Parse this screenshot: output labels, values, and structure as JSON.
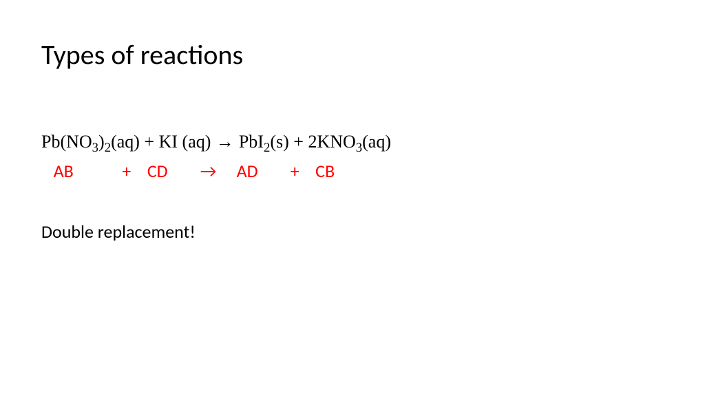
{
  "slide": {
    "title": "Types of reactions",
    "title_fontsize": 40,
    "title_color": "#000000",
    "background_color": "#ffffff",
    "equation": {
      "font_family": "Times New Roman",
      "fontsize": 26,
      "color": "#000000",
      "reactant1": {
        "formula": "Pb(NO",
        "sub1": "3",
        "mid": ")",
        "sub2": "2",
        "state": "(aq)"
      },
      "plus1": " + ",
      "reactant2": {
        "formula": "KI",
        "state": " (aq)"
      },
      "arrow": "  →   ",
      "product1": {
        "formula": "PbI",
        "sub1": "2",
        "state": "(s)"
      },
      "plus2": "   + ",
      "product2": {
        "coeff": "2",
        "formula": "KNO",
        "sub1": "3",
        "state": "(aq)"
      }
    },
    "pattern": {
      "font_family": "Calibri",
      "fontsize": 26,
      "color": "#ff0000",
      "text": "   AB            +    CD        →     AD        +    CB"
    },
    "conclusion": {
      "text": "Double replacement!",
      "fontsize": 26,
      "color": "#000000"
    }
  }
}
